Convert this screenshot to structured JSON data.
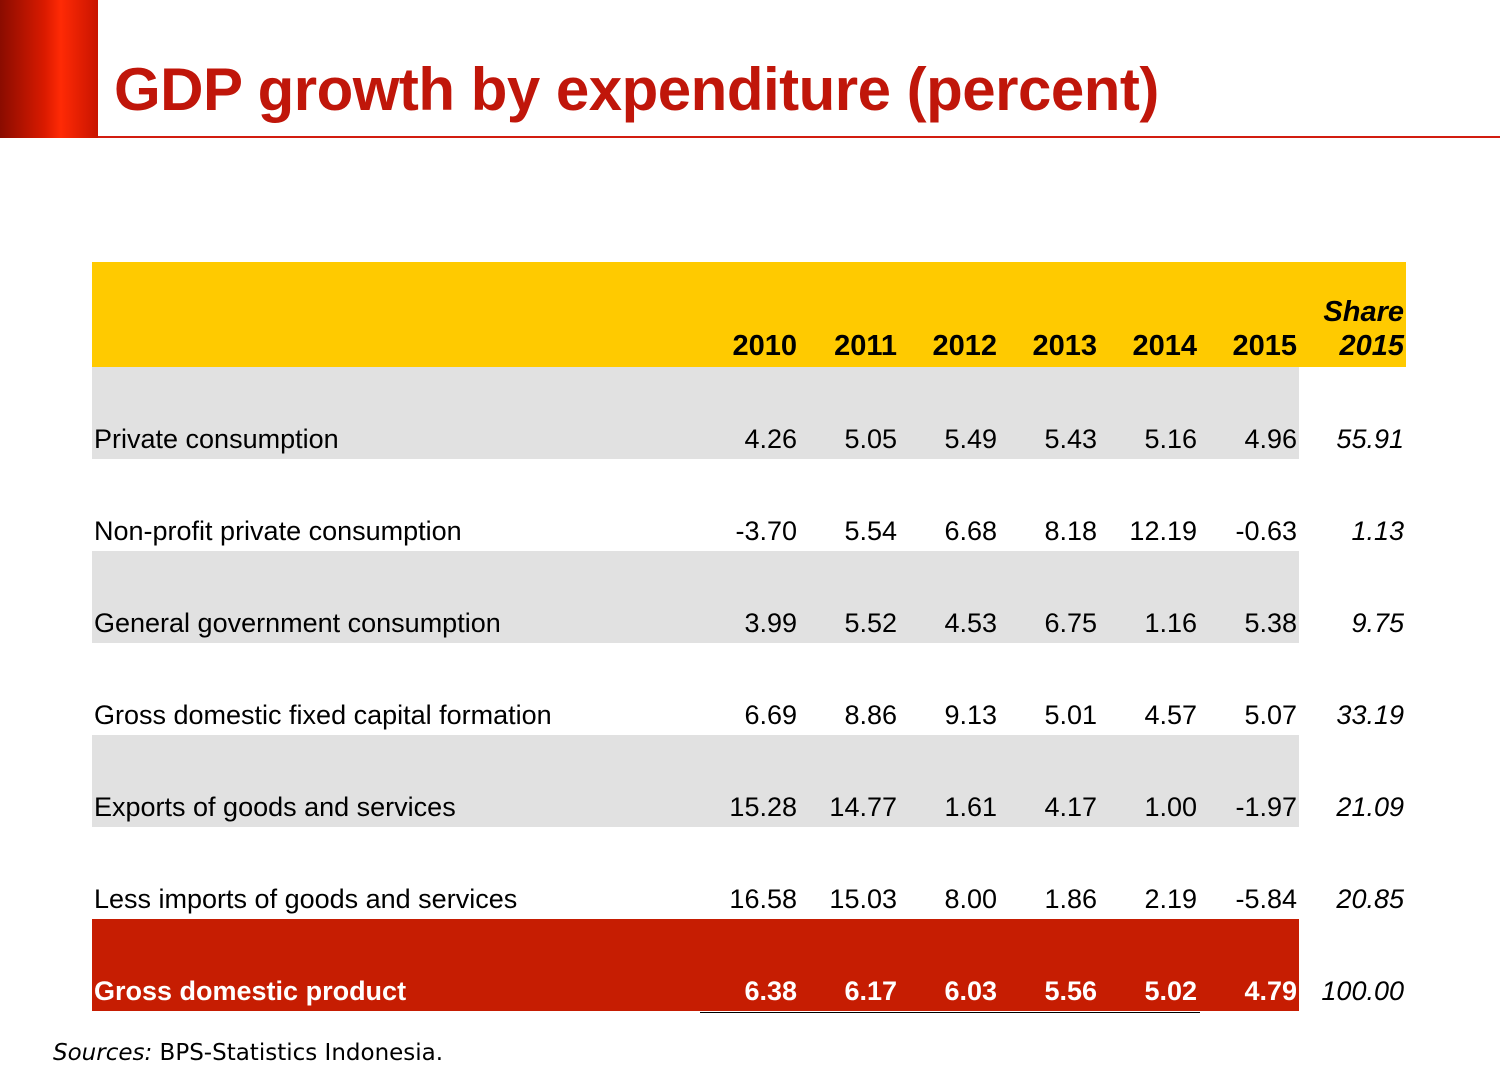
{
  "title": "GDP growth by expenditure (percent)",
  "columns": {
    "years": [
      "2010",
      "2011",
      "2012",
      "2013",
      "2014",
      "2015"
    ],
    "share_line1": "Share",
    "share_line2": "2015"
  },
  "rows": [
    {
      "label": "Private consumption",
      "values": [
        "4.26",
        "5.05",
        "5.49",
        "5.43",
        "5.16",
        "4.96"
      ],
      "share": "55.91"
    },
    {
      "label": "Non-profit private consumption",
      "values": [
        "-3.70",
        "5.54",
        "6.68",
        "8.18",
        "12.19",
        "-0.63"
      ],
      "share": "1.13"
    },
    {
      "label": "General government consumption",
      "values": [
        "3.99",
        "5.52",
        "4.53",
        "6.75",
        "1.16",
        "5.38"
      ],
      "share": "9.75"
    },
    {
      "label": "Gross domestic fixed capital formation",
      "values": [
        "6.69",
        "8.86",
        "9.13",
        "5.01",
        "4.57",
        "5.07"
      ],
      "share": "33.19"
    },
    {
      "label": "Exports of goods and services",
      "values": [
        "15.28",
        "14.77",
        "1.61",
        "4.17",
        "1.00",
        "-1.97"
      ],
      "share": "21.09"
    },
    {
      "label": "Less imports of goods and services",
      "values": [
        "16.58",
        "15.03",
        "8.00",
        "1.86",
        "2.19",
        "-5.84"
      ],
      "share": "20.85"
    }
  ],
  "total": {
    "label": "Gross domestic product",
    "values": [
      "6.38",
      "6.17",
      "6.03",
      "5.56",
      "5.02",
      "4.79"
    ],
    "share": "100.00"
  },
  "source": {
    "prefix": "Sources:",
    "text": " BPS-Statistics Indonesia."
  },
  "colors": {
    "title": "#c0160a",
    "header_bg": "#ffca00",
    "total_bg": "#c61d02",
    "shade_bg": "#e1e1e1"
  }
}
